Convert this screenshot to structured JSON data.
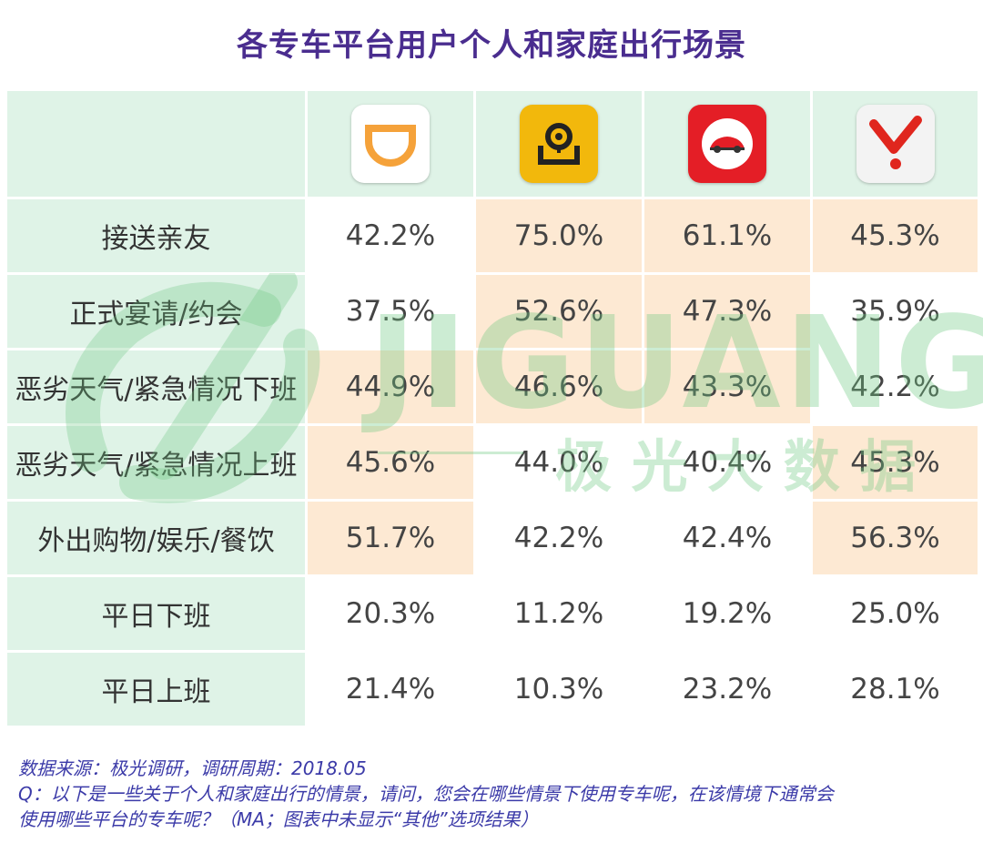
{
  "title": "各专车平台用户个人和家庭出行场景",
  "platforms": [
    {
      "icon": "didi-logo-icon",
      "color": "#f5a23a"
    },
    {
      "icon": "shenzhou-logo-icon",
      "color": "#f2b80c"
    },
    {
      "icon": "shouqi-logo-icon",
      "color": "#e41e26"
    },
    {
      "icon": "yidao-logo-icon",
      "color": "#e0261e"
    }
  ],
  "chart_data": {
    "type": "table",
    "categories": [
      "接送亲友",
      "正式宴请/约会",
      "恶劣天气/紧急情况下班",
      "恶劣天气/紧急情况上班",
      "外出购物/娱乐/餐饮",
      "平日下班",
      "平日上班"
    ],
    "series": [
      {
        "icon": "didi-logo-icon",
        "values": [
          "42.2%",
          "37.5%",
          "44.9%",
          "45.6%",
          "51.7%",
          "20.3%",
          "21.4%"
        ]
      },
      {
        "icon": "shenzhou-logo-icon",
        "values": [
          "75.0%",
          "52.6%",
          "46.6%",
          "44.0%",
          "42.2%",
          "11.2%",
          "10.3%"
        ]
      },
      {
        "icon": "shouqi-logo-icon",
        "values": [
          "61.1%",
          "47.3%",
          "43.3%",
          "40.4%",
          "42.4%",
          "19.2%",
          "23.2%"
        ]
      },
      {
        "icon": "yidao-logo-icon",
        "values": [
          "45.3%",
          "35.9%",
          "42.2%",
          "45.3%",
          "56.3%",
          "25.0%",
          "28.1%"
        ]
      }
    ],
    "highlight": [
      [
        false,
        true,
        true,
        true
      ],
      [
        false,
        true,
        true,
        false
      ],
      [
        true,
        true,
        true,
        false
      ],
      [
        true,
        false,
        false,
        true
      ],
      [
        true,
        false,
        false,
        true
      ],
      [
        false,
        false,
        false,
        false
      ],
      [
        false,
        false,
        false,
        false
      ]
    ],
    "colors": {
      "label_bg": "#dff3e7",
      "highlight_bg": "#fde9d3"
    }
  },
  "watermark": {
    "text_en": "JIGUANG",
    "text_cn": "极 光 大 数 据"
  },
  "footer": {
    "line1": "数据来源：极光调研，调研周期：2018.05",
    "line2": "Q：以下是一些关于个人和家庭出行的情景，请问，您会在哪些情景下使用专车呢，在该情境下通常会",
    "line3": "使用哪些平台的专车呢？（MA；图表中未显示“其他”选项结果）"
  }
}
